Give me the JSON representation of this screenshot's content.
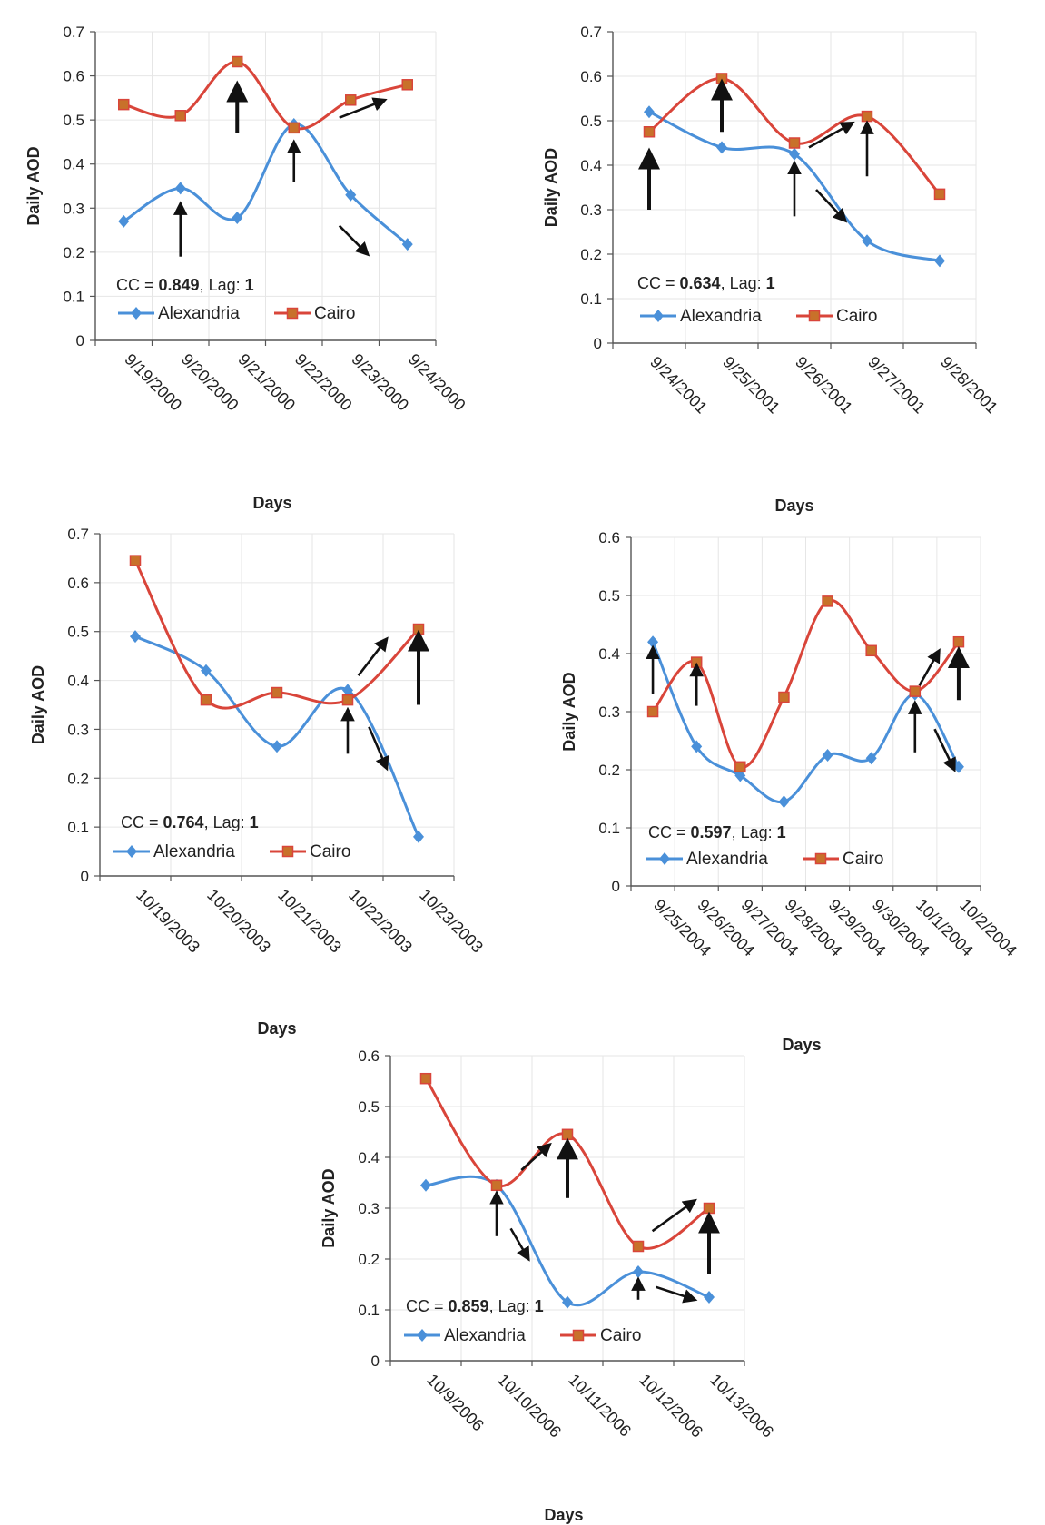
{
  "colors": {
    "alexandria": "#4a90d9",
    "cairo": "#d9453a",
    "arrow": "#111111",
    "grid": "#e6e6e6",
    "axis": "#555555"
  },
  "chart_data": [
    {
      "type": "line",
      "ylabel": "Daily AOD",
      "xlabel": "Days",
      "ylim": [
        0,
        0.7
      ],
      "yticks": [
        "0",
        "0.1",
        "0.2",
        "0.3",
        "0.4",
        "0.5",
        "0.6",
        "0.7"
      ],
      "categories": [
        "9/19/2000",
        "9/20/2000",
        "9/21/2000",
        "9/22/2000",
        "9/23/2000",
        "9/24/2000"
      ],
      "annotation": {
        "prefix": "CC = ",
        "value": "0.849",
        "sep": ", Lag: ",
        "lag": "1"
      },
      "series": [
        {
          "name": "Alexandria",
          "values": [
            0.27,
            0.345,
            0.278,
            0.49,
            0.33,
            0.218
          ]
        },
        {
          "name": "Cairo",
          "values": [
            0.535,
            0.51,
            0.632,
            0.482,
            0.545,
            0.58
          ]
        }
      ],
      "arrows": [
        {
          "x": 1,
          "y1": 0.19,
          "y2": 0.31
        },
        {
          "x": 2,
          "y1": 0.47,
          "y2": 0.58,
          "bold": true
        },
        {
          "x": 3,
          "y1": 0.36,
          "y2": 0.45
        },
        {
          "x": 3.8,
          "y1": 0.505,
          "x2": 4.6,
          "y2": 0.545
        },
        {
          "x": 3.8,
          "y1": 0.26,
          "x2": 4.3,
          "y2": 0.195
        }
      ]
    },
    {
      "type": "line",
      "ylabel": "Daily AOD",
      "xlabel": "Days",
      "ylim": [
        0,
        0.7
      ],
      "yticks": [
        "0",
        "0.1",
        "0.2",
        "0.3",
        "0.4",
        "0.5",
        "0.6",
        "0.7"
      ],
      "categories": [
        "9/24/2001",
        "9/25/2001",
        "9/26/2001",
        "9/27/2001",
        "9/28/2001"
      ],
      "annotation": {
        "prefix": "CC = ",
        "value": "0.634",
        "sep": ", Lag: ",
        "lag": "1"
      },
      "series": [
        {
          "name": "Alexandria",
          "values": [
            0.52,
            0.44,
            0.425,
            0.23,
            0.185
          ]
        },
        {
          "name": "Cairo",
          "values": [
            0.475,
            0.595,
            0.45,
            0.51,
            0.335
          ]
        }
      ],
      "arrows": [
        {
          "x": 0,
          "y1": 0.3,
          "y2": 0.43,
          "bold": true
        },
        {
          "x": 1,
          "y1": 0.475,
          "y2": 0.585,
          "bold": true
        },
        {
          "x": 2,
          "y1": 0.285,
          "y2": 0.405
        },
        {
          "x": 2.2,
          "y1": 0.44,
          "x2": 2.8,
          "y2": 0.495
        },
        {
          "x": 3,
          "y1": 0.375,
          "y2": 0.495
        },
        {
          "x": 2.3,
          "y1": 0.345,
          "x2": 2.7,
          "y2": 0.275
        }
      ]
    },
    {
      "type": "line",
      "ylabel": "Daily AOD",
      "xlabel": "Days",
      "ylim": [
        0,
        0.7
      ],
      "yticks": [
        "0",
        "0.1",
        "0.2",
        "0.3",
        "0.4",
        "0.5",
        "0.6",
        "0.7"
      ],
      "categories": [
        "10/19/2003",
        "10/20/2003",
        "10/21/2003",
        "10/22/2003",
        "10/23/2003"
      ],
      "annotation": {
        "prefix": "CC = ",
        "value": "0.764",
        "sep": ", Lag: ",
        "lag": "1"
      },
      "series": [
        {
          "name": "Alexandria",
          "values": [
            0.49,
            0.42,
            0.265,
            0.38,
            0.08
          ]
        },
        {
          "name": "Cairo",
          "values": [
            0.645,
            0.36,
            0.375,
            0.36,
            0.505
          ]
        }
      ],
      "arrows": [
        {
          "x": 3,
          "y1": 0.25,
          "y2": 0.34
        },
        {
          "x": 3.15,
          "y1": 0.41,
          "x2": 3.55,
          "y2": 0.485
        },
        {
          "x": 4,
          "y1": 0.35,
          "y2": 0.495,
          "bold": true
        },
        {
          "x": 3.3,
          "y1": 0.305,
          "x2": 3.55,
          "y2": 0.22
        }
      ]
    },
    {
      "type": "line",
      "ylabel": "Daily AOD",
      "xlabel": "Days",
      "ylim": [
        0,
        0.6
      ],
      "yticks": [
        "0",
        "0.1",
        "0.2",
        "0.3",
        "0.4",
        "0.5",
        "0.6"
      ],
      "categories": [
        "9/25/2004",
        "9/26/2004",
        "9/27/2004",
        "9/28/2004",
        "9/29/2004",
        "9/30/2004",
        "10/1/2004",
        "10/2/2004"
      ],
      "annotation": {
        "prefix": "CC = ",
        "value": "0.597",
        "sep": ", Lag: ",
        "lag": "1"
      },
      "series": [
        {
          "name": "Alexandria",
          "values": [
            0.42,
            0.24,
            0.19,
            0.145,
            0.225,
            0.22,
            0.33,
            0.205
          ]
        },
        {
          "name": "Cairo",
          "values": [
            0.3,
            0.385,
            0.205,
            0.325,
            0.49,
            0.405,
            0.335,
            0.42
          ]
        }
      ],
      "arrows": [
        {
          "x": 0,
          "y1": 0.33,
          "y2": 0.41
        },
        {
          "x": 1,
          "y1": 0.31,
          "y2": 0.38
        },
        {
          "x": 6,
          "y1": 0.23,
          "y2": 0.315
        },
        {
          "x": 6.1,
          "y1": 0.345,
          "x2": 6.55,
          "y2": 0.405
        },
        {
          "x": 7,
          "y1": 0.32,
          "y2": 0.405,
          "bold": true
        },
        {
          "x": 6.45,
          "y1": 0.27,
          "x2": 6.9,
          "y2": 0.2
        }
      ]
    },
    {
      "type": "line",
      "ylabel": "Daily AOD",
      "xlabel": "Days",
      "ylim": [
        0,
        0.6
      ],
      "yticks": [
        "0",
        "0.1",
        "0.2",
        "0.3",
        "0.4",
        "0.5",
        "0.6"
      ],
      "categories": [
        "10/9/2006",
        "10/10/2006",
        "10/11/2006",
        "10/12/2006",
        "10/13/2006"
      ],
      "annotation": {
        "prefix": "CC = ",
        "value": "0.859",
        "sep": ", Lag: ",
        "lag": "1"
      },
      "series": [
        {
          "name": "Alexandria",
          "values": [
            0.345,
            0.345,
            0.115,
            0.175,
            0.125
          ]
        },
        {
          "name": "Cairo",
          "values": [
            0.555,
            0.345,
            0.445,
            0.225,
            0.3
          ]
        }
      ],
      "arrows": [
        {
          "x": 1,
          "y1": 0.245,
          "y2": 0.33
        },
        {
          "x": 1.35,
          "y1": 0.375,
          "x2": 1.75,
          "y2": 0.425
        },
        {
          "x": 2,
          "y1": 0.32,
          "y2": 0.43,
          "bold": true
        },
        {
          "x": 1.2,
          "y1": 0.26,
          "x2": 1.45,
          "y2": 0.2
        },
        {
          "x": 3,
          "y1": 0.12,
          "y2": 0.16
        },
        {
          "x": 3.2,
          "y1": 0.255,
          "x2": 3.8,
          "y2": 0.315
        },
        {
          "x": 4,
          "y1": 0.17,
          "y2": 0.285,
          "bold": true
        },
        {
          "x": 3.25,
          "y1": 0.145,
          "x2": 3.8,
          "y2": 0.12
        }
      ]
    }
  ]
}
